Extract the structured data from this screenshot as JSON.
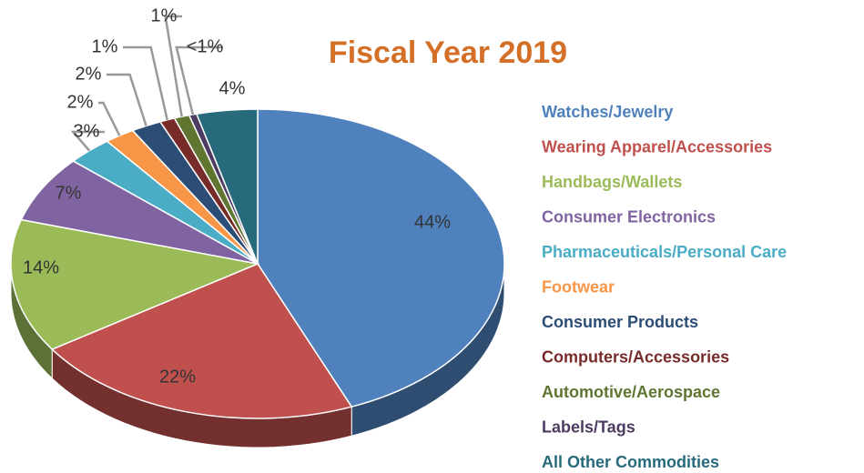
{
  "chart_data": {
    "type": "pie",
    "title": "Fiscal Year 2019",
    "categories": [
      "Watches/Jewelry",
      "Wearing Apparel/Accessories",
      "Handbags/Wallets",
      "Consumer Electronics",
      "Pharmaceuticals/Personal Care",
      "Footwear",
      "Consumer Products",
      "Computers/Accessories",
      "Automotive/Aerospace",
      "Labels/Tags",
      "All Other Commodities"
    ],
    "values": [
      44,
      22,
      14,
      7,
      3,
      2,
      2,
      1,
      1,
      0.5,
      4
    ],
    "value_labels": [
      "44%",
      "22%",
      "14%",
      "7%",
      "3%",
      "2%",
      "2%",
      "1%",
      "1%",
      "<1%",
      "4%"
    ],
    "colors": [
      "#4f81bd",
      "#c0504d",
      "#9bbb59",
      "#8064a2",
      "#4bacc6",
      "#f79646",
      "#2c4d75",
      "#772c2a",
      "#5f7530",
      "#4d3b62",
      "#276a7c"
    ],
    "legend": "right"
  }
}
